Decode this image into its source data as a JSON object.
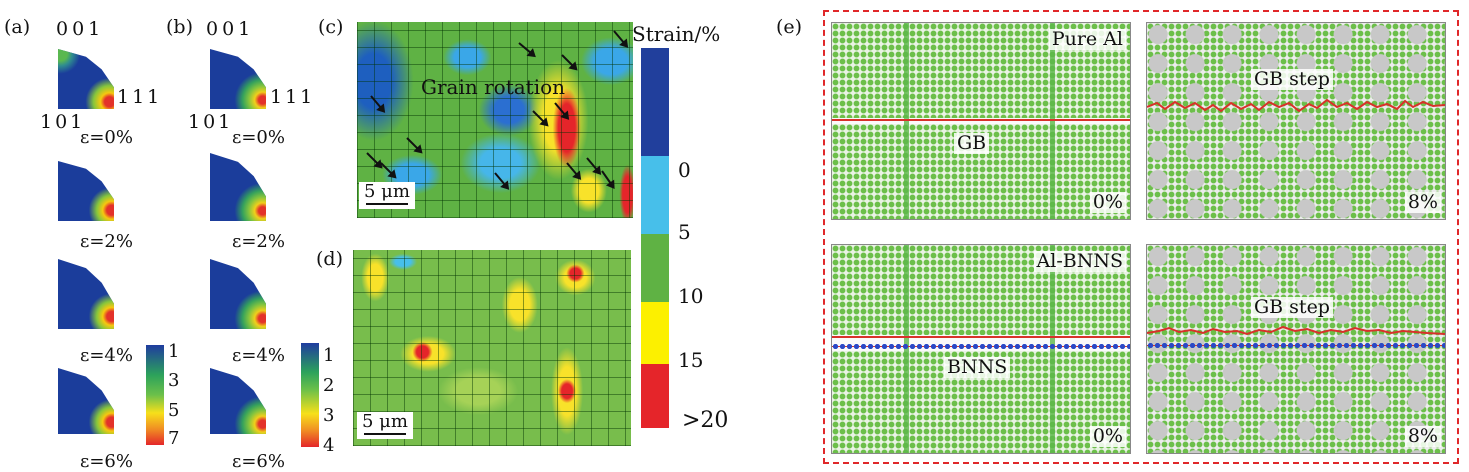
{
  "panel_a": {
    "label": "(a)",
    "corners": {
      "top": "001",
      "right": "111",
      "left": "101"
    },
    "strains": [
      "ε=0%",
      "ε=2%",
      "ε=4%",
      "ε=6%"
    ],
    "colorbar_ticks": [
      "1",
      "3",
      "5",
      "7"
    ]
  },
  "panel_b": {
    "label": "(b)",
    "corners": {
      "top": "001",
      "right": "111",
      "left": "101"
    },
    "strains": [
      "ε=0%",
      "ε=2%",
      "ε=4%",
      "ε=6%"
    ],
    "colorbar_ticks": [
      "1",
      "2",
      "3",
      "4"
    ]
  },
  "panel_c": {
    "label": "(c)",
    "annotation": "Grain rotation",
    "scale_bar": "5 μm"
  },
  "panel_d": {
    "label": "(d)",
    "scale_bar": "5 μm"
  },
  "strain_colorbar": {
    "title": "Strain/%",
    "ticks": [
      "0",
      "5",
      "10",
      "15",
      ">20"
    ],
    "colors": [
      "#213f9c",
      "#47bfea",
      "#5fb244",
      "#fcf000",
      "#e5252a"
    ]
  },
  "panel_e": {
    "label": "(e)",
    "border_color": "#e0282a",
    "top_left": {
      "title": "Pure Al",
      "mid_label": "GB",
      "strain": "0%"
    },
    "top_right": {
      "title": "GB step",
      "strain": "8%"
    },
    "bottom_left": {
      "title": "Al-BNNS",
      "mid_label": "BNNS",
      "strain": "0%"
    },
    "bottom_right": {
      "title": "GB step",
      "strain": "8%"
    }
  }
}
